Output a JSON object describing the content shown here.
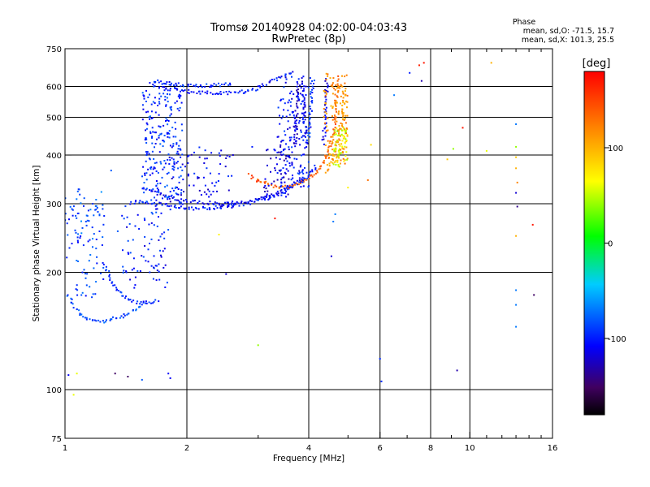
{
  "chart_data": {
    "type": "scatter",
    "title": "Tromsø 20140928 04:02:00-04:03:43",
    "subtitle": "RwPretec (8p)",
    "xlabel": "Frequency [MHz]",
    "ylabel": "Stationary phase Virtual Height [km]",
    "x_scale": "log",
    "y_scale": "log",
    "xlim": [
      1,
      16
    ],
    "ylim": [
      75,
      750
    ],
    "x_ticks": [
      1,
      2,
      4,
      6,
      8,
      10,
      16
    ],
    "x_tick_labels": [
      "1",
      "2",
      "4",
      "6",
      "8",
      "10",
      "16"
    ],
    "x_minor_ticks": [
      3,
      5,
      7,
      9,
      11,
      12,
      13,
      14,
      15
    ],
    "y_ticks": [
      75,
      100,
      200,
      300,
      400,
      500,
      600,
      750
    ],
    "y_tick_labels": [
      "75",
      "100",
      "200",
      "300",
      "400",
      "500",
      "600",
      "750"
    ],
    "grid": true,
    "colorbar": {
      "label": "[deg]",
      "range": [
        -180,
        180
      ],
      "ticks": [
        100,
        0,
        -100
      ],
      "tick_labels": [
        "100",
        "0",
        "-100"
      ]
    },
    "phase_header": "Phase",
    "phase_stats": [
      "mean, sd,O: -71.5, 15.7",
      "mean, sd,X: 101.3, 25.5"
    ],
    "trace_curves": [
      {
        "name": "",
        "phase": -85,
        "points": [
          [
            1.02,
            175
          ],
          [
            1.05,
            165
          ],
          [
            1.08,
            158
          ],
          [
            1.12,
            153
          ],
          [
            1.16,
            150
          ],
          [
            1.22,
            149
          ],
          [
            1.3,
            151
          ],
          [
            1.4,
            155
          ],
          [
            1.5,
            161
          ],
          [
            1.58,
            168
          ]
        ]
      },
      {
        "name": "",
        "phase": -95,
        "points": [
          [
            1.25,
            210
          ],
          [
            1.3,
            190
          ],
          [
            1.35,
            178
          ],
          [
            1.42,
            172
          ],
          [
            1.5,
            168
          ],
          [
            1.6,
            167
          ],
          [
            1.72,
            169
          ]
        ]
      },
      {
        "name": "",
        "phase": -100,
        "points": [
          [
            1.45,
            300
          ],
          [
            1.55,
            305
          ],
          [
            1.7,
            300
          ],
          [
            1.85,
            295
          ],
          [
            2.0,
            292
          ],
          [
            2.2,
            292
          ],
          [
            2.5,
            295
          ],
          [
            2.8,
            300
          ],
          [
            3.1,
            308
          ],
          [
            3.4,
            318
          ],
          [
            3.7,
            335
          ],
          [
            4.0,
            355
          ],
          [
            4.2,
            380
          ]
        ]
      },
      {
        "name": "",
        "phase": -110,
        "points": [
          [
            1.55,
            330
          ],
          [
            1.7,
            318
          ],
          [
            1.9,
            308
          ],
          [
            2.1,
            303
          ],
          [
            2.4,
            300
          ],
          [
            2.7,
            302
          ],
          [
            3.0,
            307
          ],
          [
            3.3,
            318
          ],
          [
            3.6,
            332
          ],
          [
            3.9,
            352
          ]
        ]
      },
      {
        "name": "",
        "phase": -105,
        "points": [
          [
            1.7,
            600
          ],
          [
            1.85,
            590
          ],
          [
            2.0,
            583
          ],
          [
            2.2,
            578
          ],
          [
            2.5,
            578
          ],
          [
            2.8,
            582
          ],
          [
            3.0,
            595
          ],
          [
            3.2,
            615
          ],
          [
            3.45,
            640
          ],
          [
            3.7,
            655
          ]
        ]
      },
      {
        "name": "",
        "phase": -95,
        "points": [
          [
            1.65,
            620
          ],
          [
            1.8,
            610
          ],
          [
            2.0,
            605
          ],
          [
            2.2,
            603
          ],
          [
            2.4,
            605
          ],
          [
            2.6,
            612
          ]
        ]
      },
      {
        "name": "",
        "phase": -110,
        "points": [
          [
            3.95,
            420
          ],
          [
            3.92,
            460
          ],
          [
            3.9,
            500
          ],
          [
            3.88,
            550
          ],
          [
            3.87,
            600
          ],
          [
            3.86,
            640
          ]
        ]
      },
      {
        "name": "",
        "phase": -120,
        "points": [
          [
            3.7,
            420
          ],
          [
            3.72,
            470
          ],
          [
            3.74,
            520
          ],
          [
            3.75,
            570
          ],
          [
            3.78,
            620
          ]
        ]
      },
      {
        "name": "",
        "phase": -90,
        "points": [
          [
            4.0,
            440
          ],
          [
            4.02,
            490
          ],
          [
            4.05,
            540
          ],
          [
            4.08,
            590
          ],
          [
            4.1,
            630
          ]
        ]
      },
      {
        "name": "",
        "phase": 135,
        "points": [
          [
            3.0,
            345
          ],
          [
            3.2,
            335
          ],
          [
            3.4,
            330
          ],
          [
            3.6,
            332
          ],
          [
            3.85,
            340
          ],
          [
            4.1,
            355
          ],
          [
            4.3,
            375
          ],
          [
            4.45,
            400
          ],
          [
            4.55,
            430
          ],
          [
            4.62,
            470
          ],
          [
            4.66,
            510
          ],
          [
            4.68,
            560
          ],
          [
            4.7,
            600
          ],
          [
            4.7,
            640
          ]
        ]
      },
      {
        "name": "",
        "phase": 150,
        "points": [
          [
            2.85,
            355
          ],
          [
            2.95,
            345
          ],
          [
            3.05,
            340
          ]
        ]
      },
      {
        "name": "",
        "phase": 110,
        "points": [
          [
            4.4,
            360
          ],
          [
            4.55,
            385
          ],
          [
            4.7,
            420
          ],
          [
            4.8,
            460
          ],
          [
            4.85,
            500
          ],
          [
            4.88,
            550
          ],
          [
            4.9,
            590
          ]
        ]
      },
      {
        "name": "",
        "phase": 80,
        "points": [
          [
            4.6,
            380
          ],
          [
            4.75,
            400
          ],
          [
            4.85,
            430
          ],
          [
            4.95,
            470
          ]
        ]
      },
      {
        "name": "",
        "phase": -115,
        "points": [
          [
            4.35,
            430
          ],
          [
            4.38,
            480
          ],
          [
            4.4,
            530
          ],
          [
            4.42,
            580
          ],
          [
            4.44,
            630
          ]
        ]
      }
    ],
    "trace_clouds": [
      {
        "phase": -95,
        "x": [
          1.55,
          1.95
        ],
        "y": [
          300,
          620
        ],
        "n": 240
      },
      {
        "phase": -90,
        "x": [
          1.0,
          1.25
        ],
        "y": [
          170,
          300
        ],
        "n": 70
      },
      {
        "phase": -100,
        "x": [
          1.38,
          1.8
        ],
        "y": [
          180,
          300
        ],
        "n": 80
      },
      {
        "phase": -110,
        "x": [
          1.8,
          2.6
        ],
        "y": [
          290,
          420
        ],
        "n": 70
      },
      {
        "phase": -105,
        "x": [
          3.35,
          4.05
        ],
        "y": [
          330,
          640
        ],
        "n": 150
      },
      {
        "phase": -115,
        "x": [
          3.1,
          3.6
        ],
        "y": [
          310,
          420
        ],
        "n": 60
      },
      {
        "phase": 115,
        "x": [
          4.35,
          5.0
        ],
        "y": [
          380,
          650
        ],
        "n": 120
      },
      {
        "phase": 55,
        "x": [
          4.6,
          5.0
        ],
        "y": [
          370,
          470
        ],
        "n": 45
      },
      {
        "phase": -80,
        "x": [
          1.0,
          1.25
        ],
        "y": [
          240,
          330
        ],
        "n": 30
      }
    ],
    "scatter_points": [
      {
        "x": 1.02,
        "y": 109,
        "phase": -110
      },
      {
        "x": 1.07,
        "y": 110,
        "phase": 60
      },
      {
        "x": 1.05,
        "y": 97,
        "phase": 60
      },
      {
        "x": 1.33,
        "y": 110,
        "phase": -150
      },
      {
        "x": 1.43,
        "y": 108,
        "phase": -150
      },
      {
        "x": 1.55,
        "y": 106,
        "phase": -80
      },
      {
        "x": 1.8,
        "y": 110,
        "phase": -110
      },
      {
        "x": 1.82,
        "y": 107,
        "phase": -110
      },
      {
        "x": 2.5,
        "y": 198,
        "phase": -120
      },
      {
        "x": 3.0,
        "y": 130,
        "phase": 40
      },
      {
        "x": 2.4,
        "y": 250,
        "phase": 70
      },
      {
        "x": 3.3,
        "y": 275,
        "phase": 170
      },
      {
        "x": 3.35,
        "y": 445,
        "phase": -110
      },
      {
        "x": 2.9,
        "y": 420,
        "phase": -100
      },
      {
        "x": 2.6,
        "y": 400,
        "phase": -120
      },
      {
        "x": 6.0,
        "y": 120,
        "phase": -95
      },
      {
        "x": 6.05,
        "y": 105,
        "phase": -95
      },
      {
        "x": 6.5,
        "y": 570,
        "phase": -70
      },
      {
        "x": 7.1,
        "y": 650,
        "phase": -100
      },
      {
        "x": 7.5,
        "y": 680,
        "phase": 165
      },
      {
        "x": 7.7,
        "y": 690,
        "phase": 170
      },
      {
        "x": 7.6,
        "y": 620,
        "phase": -130
      },
      {
        "x": 9.6,
        "y": 470,
        "phase": 170
      },
      {
        "x": 9.1,
        "y": 415,
        "phase": 40
      },
      {
        "x": 8.8,
        "y": 390,
        "phase": 90
      },
      {
        "x": 9.3,
        "y": 112,
        "phase": -130
      },
      {
        "x": 11.3,
        "y": 690,
        "phase": 100
      },
      {
        "x": 11.0,
        "y": 410,
        "phase": 60
      },
      {
        "x": 13.0,
        "y": 480,
        "phase": -70
      },
      {
        "x": 13.0,
        "y": 420,
        "phase": 40
      },
      {
        "x": 13.0,
        "y": 395,
        "phase": 90
      },
      {
        "x": 13.0,
        "y": 370,
        "phase": 100
      },
      {
        "x": 13.1,
        "y": 340,
        "phase": 120
      },
      {
        "x": 13.0,
        "y": 320,
        "phase": -120
      },
      {
        "x": 13.1,
        "y": 295,
        "phase": -140
      },
      {
        "x": 13.0,
        "y": 248,
        "phase": 100
      },
      {
        "x": 13.0,
        "y": 180,
        "phase": -70
      },
      {
        "x": 13.0,
        "y": 165,
        "phase": -70
      },
      {
        "x": 13.0,
        "y": 145,
        "phase": -70
      },
      {
        "x": 14.3,
        "y": 265,
        "phase": 170
      },
      {
        "x": 14.4,
        "y": 175,
        "phase": -150
      },
      {
        "x": 5.6,
        "y": 345,
        "phase": 130
      },
      {
        "x": 5.7,
        "y": 425,
        "phase": 80
      },
      {
        "x": 4.6,
        "y": 270,
        "phase": -70
      },
      {
        "x": 4.65,
        "y": 282,
        "phase": -70
      },
      {
        "x": 4.55,
        "y": 220,
        "phase": -120
      },
      {
        "x": 5.0,
        "y": 330,
        "phase": 70
      },
      {
        "x": 3.5,
        "y": 325,
        "phase": -100
      },
      {
        "x": 1.3,
        "y": 365,
        "phase": -80
      },
      {
        "x": 1.35,
        "y": 255,
        "phase": -80
      },
      {
        "x": 1.9,
        "y": 385,
        "phase": -90
      },
      {
        "x": 2.15,
        "y": 395,
        "phase": -120
      },
      {
        "x": 1.17,
        "y": 300,
        "phase": -90
      }
    ]
  }
}
